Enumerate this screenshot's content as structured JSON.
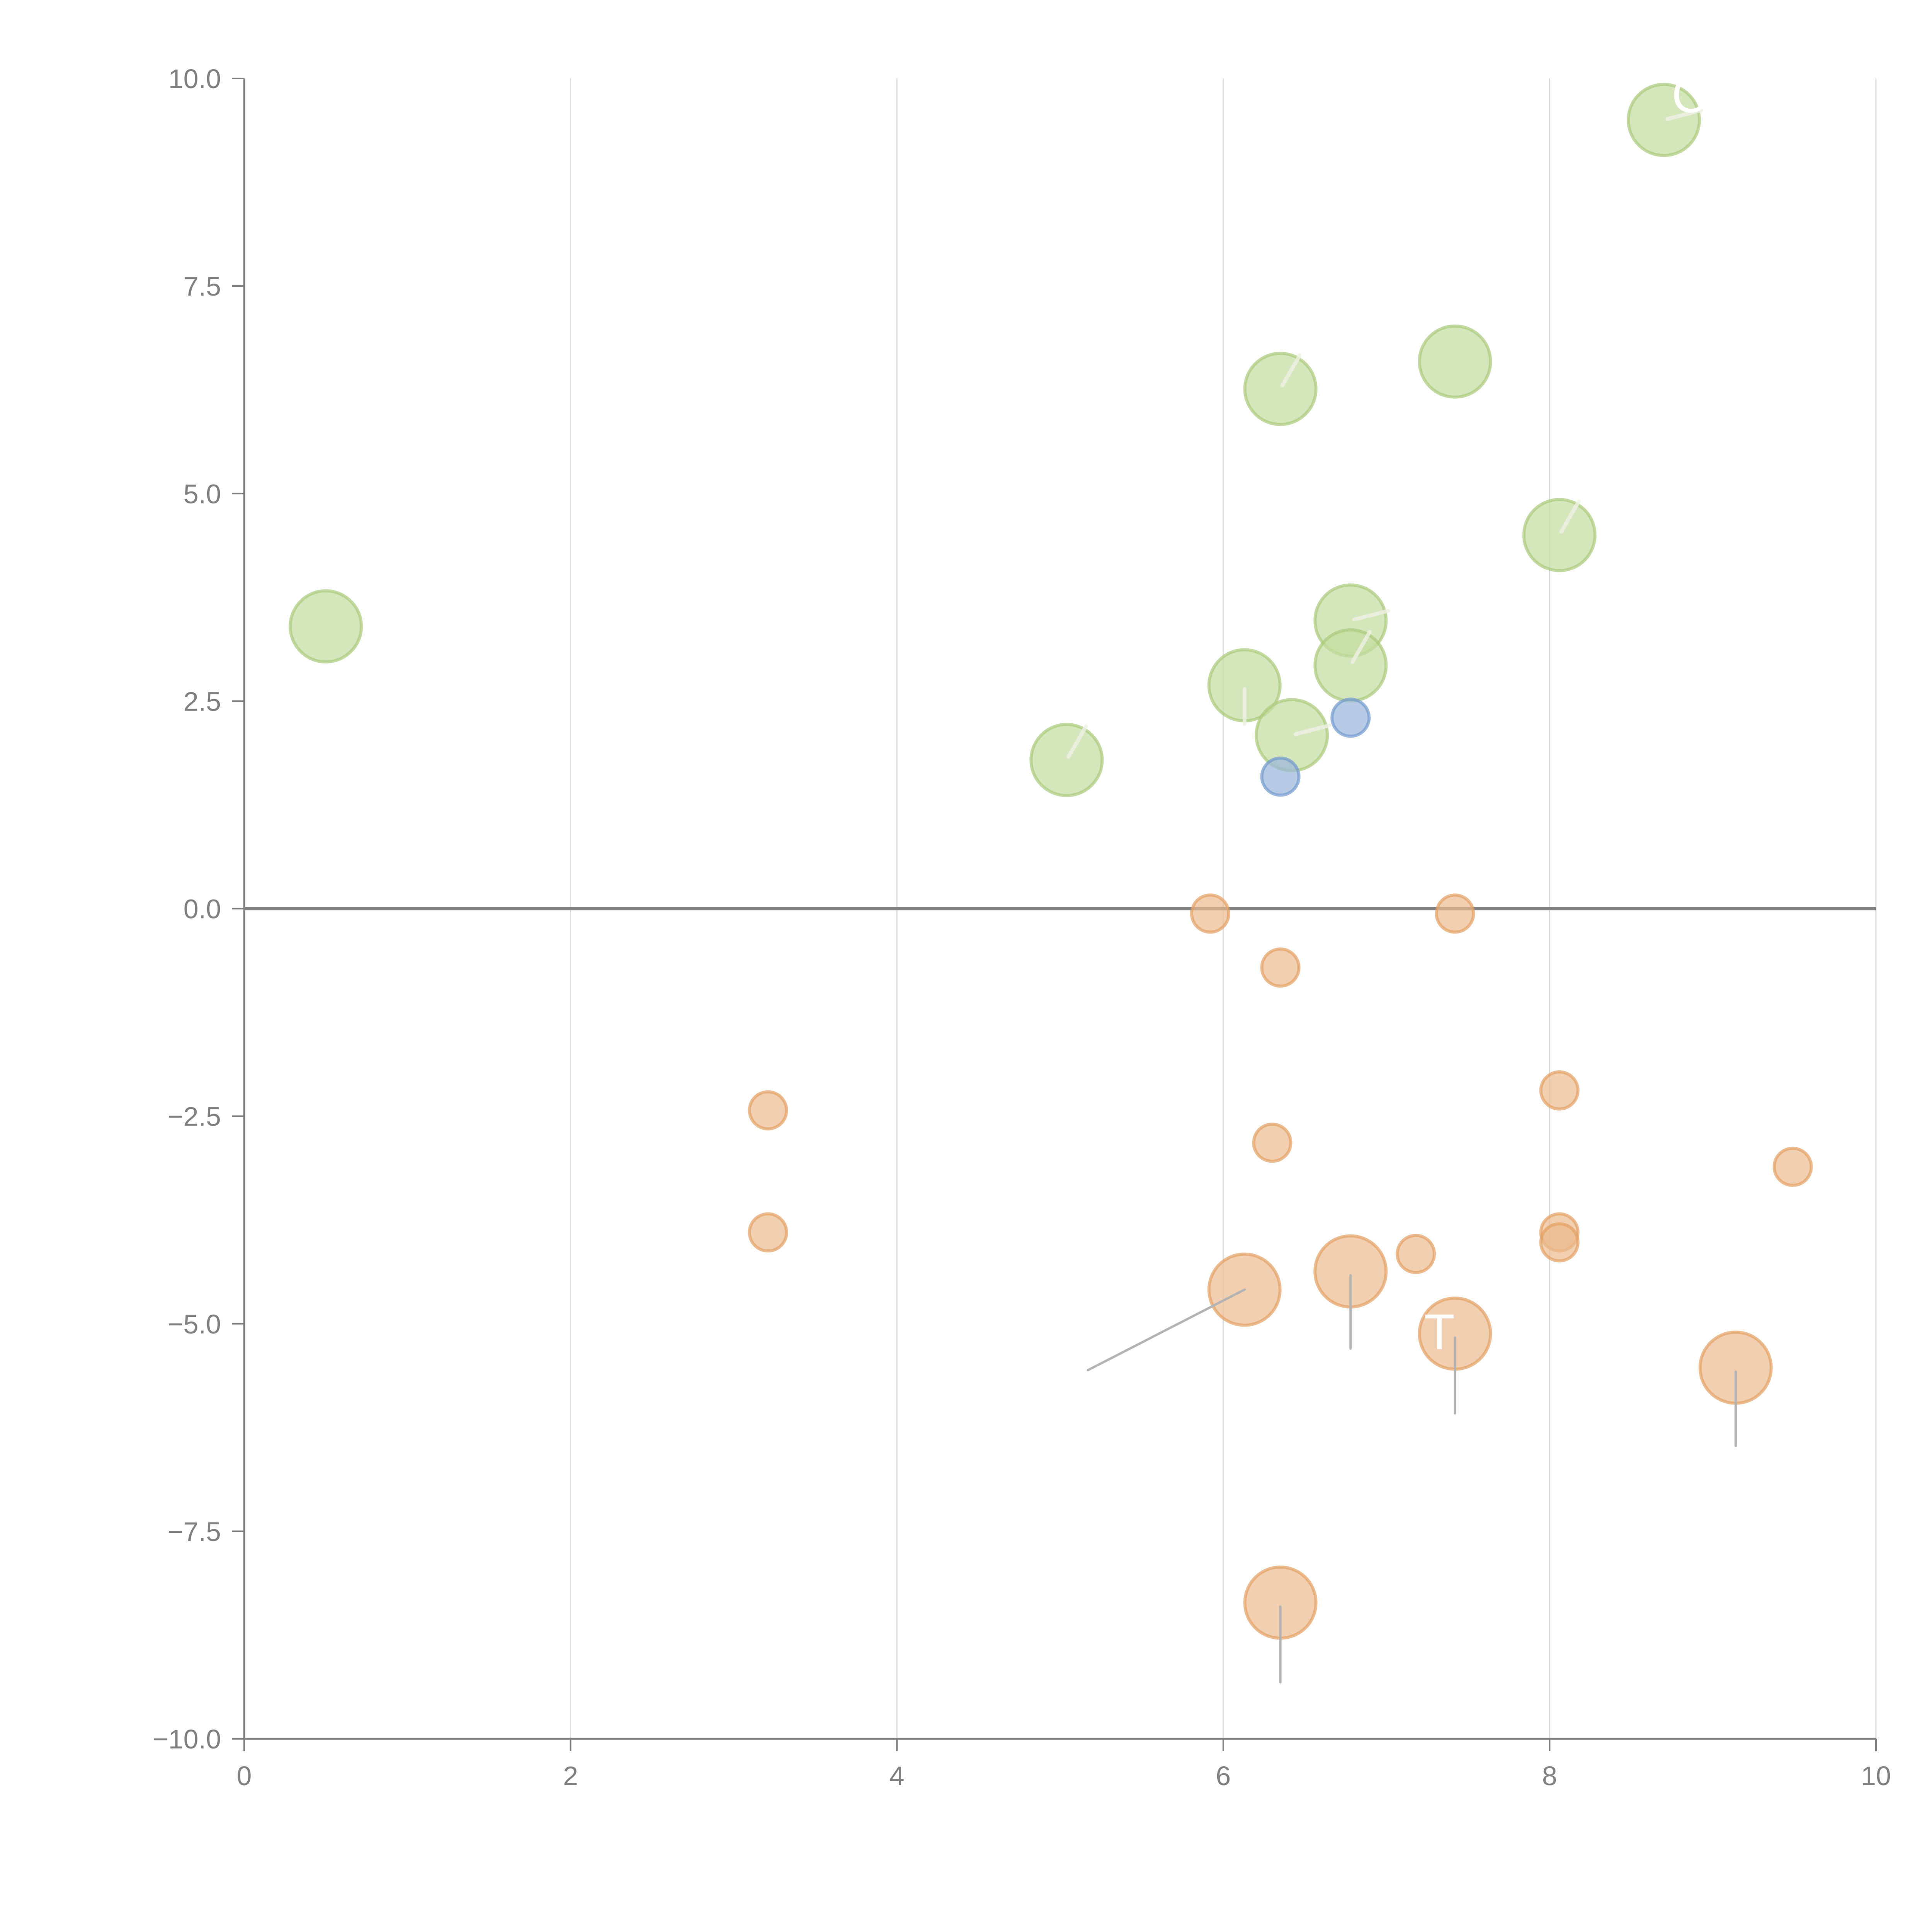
{
  "chart_data": {
    "type": "scatter",
    "subtype": "bubble",
    "title": "",
    "xlabel": "",
    "ylabel": "",
    "xlim": [
      0,
      10
    ],
    "ylim": [
      -10,
      10
    ],
    "x_ticks": [
      0,
      2,
      4,
      6,
      8,
      10
    ],
    "x_tick_labels": [
      "0",
      "2",
      "4",
      "6",
      "8",
      "10"
    ],
    "y_ticks": [
      10,
      7.5,
      5,
      2.5,
      0,
      -2.5,
      -5,
      -7.5,
      -10
    ],
    "y_tick_labels": [
      "10.0",
      "7.5",
      "5.0",
      "2.5",
      "0.0",
      "−2.5",
      "−5.0",
      "−7.5",
      "−10.0"
    ],
    "grid": "vertical",
    "zero_line": true,
    "legend": "none",
    "colors": {
      "green_fill": "#c5dba0",
      "green_stroke": "#a9c97a",
      "blue_fill": "#9ab5dc",
      "blue_stroke": "#7198cc",
      "orange_fill": "#ebbb8f",
      "orange_stroke": "#e39f62",
      "leader": "#b3b3b3",
      "axis": "#808080",
      "grid": "#d9d9d9"
    },
    "series": [
      {
        "name": "green",
        "color": "green",
        "points": [
          {
            "x": 0.5,
            "y": 3.4,
            "size": 2
          },
          {
            "x": 5.04,
            "y": 1.79,
            "size": 2,
            "leader": "up-right"
          },
          {
            "x": 6.13,
            "y": 2.69,
            "size": 2,
            "leader": "down"
          },
          {
            "x": 6.42,
            "y": 2.09,
            "size": 2,
            "leader": "right"
          },
          {
            "x": 6.78,
            "y": 3.47,
            "size": 2,
            "leader": "right"
          },
          {
            "x": 6.78,
            "y": 2.93,
            "size": 2,
            "leader": "up-right"
          },
          {
            "x": 6.35,
            "y": 6.26,
            "size": 2,
            "leader": "up-right"
          },
          {
            "x": 7.42,
            "y": 6.59,
            "size": 2
          },
          {
            "x": 8.06,
            "y": 4.5,
            "size": 2,
            "leader": "up-right"
          },
          {
            "x": 8.7,
            "y": 9.5,
            "size": 2,
            "leader": "right",
            "label": "C"
          }
        ]
      },
      {
        "name": "blue",
        "color": "blue",
        "points": [
          {
            "x": 6.35,
            "y": 1.59,
            "size": 1
          },
          {
            "x": 6.78,
            "y": 2.3,
            "size": 1
          }
        ]
      },
      {
        "name": "orange",
        "color": "orange",
        "points": [
          {
            "x": 5.92,
            "y": -0.06,
            "size": 1
          },
          {
            "x": 7.42,
            "y": -0.06,
            "size": 1
          },
          {
            "x": 6.35,
            "y": -0.71,
            "size": 1
          },
          {
            "x": 3.21,
            "y": -2.43,
            "size": 1
          },
          {
            "x": 8.06,
            "y": -2.19,
            "size": 1
          },
          {
            "x": 6.3,
            "y": -2.82,
            "size": 1
          },
          {
            "x": 9.49,
            "y": -3.11,
            "size": 1
          },
          {
            "x": 3.21,
            "y": -3.9,
            "size": 1
          },
          {
            "x": 8.06,
            "y": -3.9,
            "size": 1
          },
          {
            "x": 8.06,
            "y": -4.02,
            "size": 1
          },
          {
            "x": 7.18,
            "y": -4.16,
            "size": 1
          },
          {
            "x": 6.13,
            "y": -4.59,
            "size": 2,
            "leader_to": [
              5.17,
              -5.56
            ]
          },
          {
            "x": 6.78,
            "y": -4.37,
            "size": 2,
            "leader_to": [
              6.78,
              -5.3
            ]
          },
          {
            "x": 7.42,
            "y": -5.12,
            "size": 2,
            "leader_to": [
              7.42,
              -6.08
            ],
            "label": "T"
          },
          {
            "x": 9.14,
            "y": -5.53,
            "size": 2,
            "leader_to": [
              9.14,
              -6.47
            ]
          },
          {
            "x": 6.35,
            "y": -8.36,
            "size": 2,
            "leader_to": [
              6.35,
              -9.32
            ]
          }
        ]
      }
    ]
  }
}
